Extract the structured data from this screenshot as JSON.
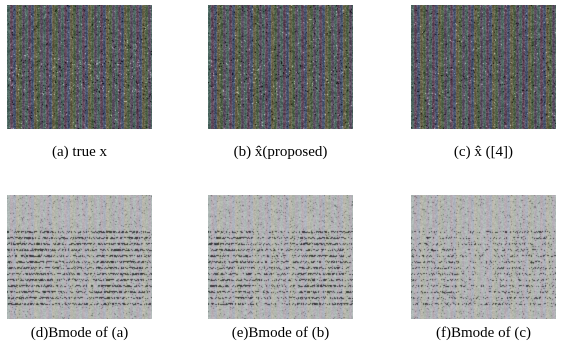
{
  "figure": {
    "panels": [
      {
        "id": "a",
        "caption": "(a)  true x",
        "kind": "rf"
      },
      {
        "id": "b",
        "caption": "(b)  x̂(proposed)",
        "kind": "rf"
      },
      {
        "id": "c",
        "caption": "(c)  x̂ ([4])",
        "kind": "rf"
      },
      {
        "id": "d",
        "caption": "(d)Bmode of (a)",
        "kind": "bmode"
      },
      {
        "id": "e",
        "caption": "(e)Bmode of (b)",
        "kind": "bmode"
      },
      {
        "id": "f",
        "caption": "(f)Bmode of (c)",
        "kind": "bmode"
      }
    ]
  }
}
